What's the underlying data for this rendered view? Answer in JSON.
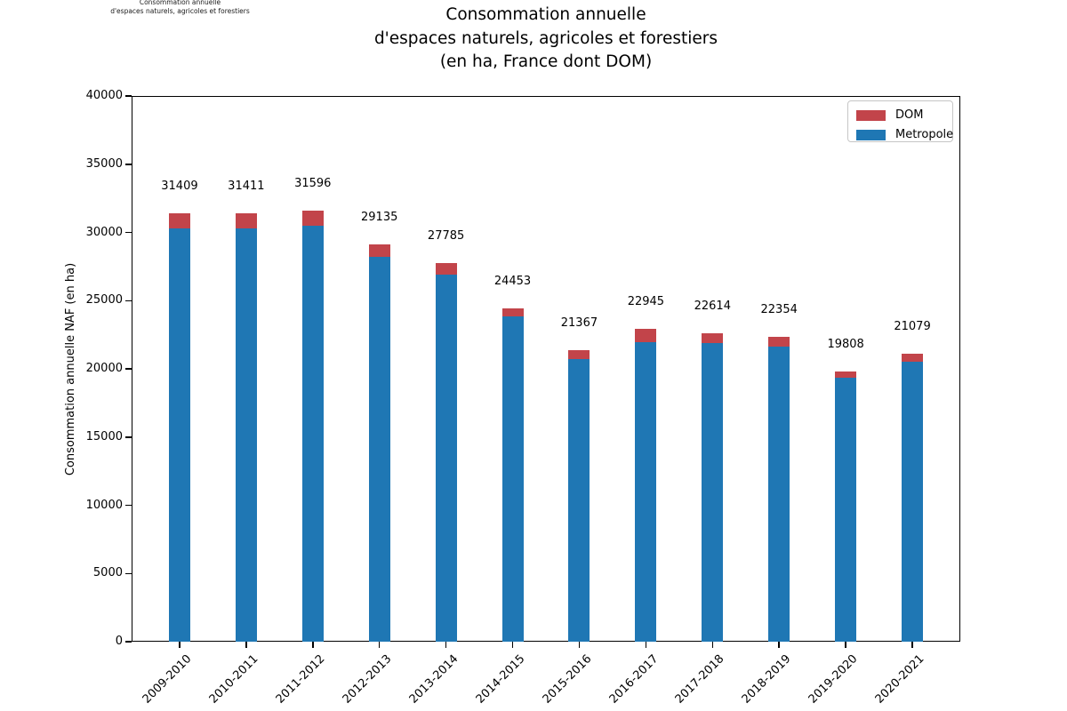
{
  "figure": {
    "ghost_title_lines": [
      "Consommation annuelle",
      "d'espaces naturels, agricoles et forestiers"
    ],
    "title_lines": [
      "Consommation annuelle",
      "d'espaces naturels, agricoles et forestiers",
      "(en ha, France dont DOM)"
    ]
  },
  "chart_data": {
    "type": "bar",
    "stacked": true,
    "title": "Consommation annuelle d'espaces naturels, agricoles et forestiers (en ha, France dont DOM)",
    "ylabel": "Consommation annuelle NAF (en ha)",
    "xlabel": "",
    "ylim": [
      0,
      40000
    ],
    "ytick_step": 5000,
    "grid": false,
    "categories": [
      "2009-2010",
      "2010-2011",
      "2011-2012",
      "2012-2013",
      "2013-2014",
      "2014-2015",
      "2015-2016",
      "2016-2017",
      "2017-2018",
      "2018-2019",
      "2019-2020",
      "2020-2021"
    ],
    "series": [
      {
        "name": "Metropole",
        "color": "#1f77b4",
        "values": [
          30309,
          30261,
          30496,
          28235,
          26885,
          23843,
          20717,
          21925,
          21894,
          21654,
          19328,
          20529
        ]
      },
      {
        "name": "DOM",
        "color": "#c2444a",
        "values": [
          1100,
          1150,
          1100,
          900,
          900,
          610,
          650,
          1020,
          720,
          700,
          480,
          550
        ]
      }
    ],
    "totals": [
      31409,
      31411,
      31596,
      29135,
      27785,
      24453,
      21367,
      22945,
      22614,
      22354,
      19808,
      21079
    ],
    "legend": {
      "position": "upper right",
      "entries": [
        {
          "label": "DOM",
          "color": "#c2444a"
        },
        {
          "label": "Metropole",
          "color": "#1f77b4"
        }
      ]
    }
  }
}
